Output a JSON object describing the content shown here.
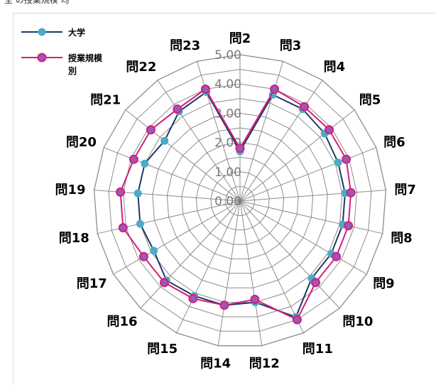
{
  "top_text": "全 の授業規模 均",
  "chart_data": {
    "type": "radar",
    "title": "",
    "categories": [
      "問2",
      "問3",
      "問4",
      "問5",
      "問6",
      "問7",
      "問8",
      "問9",
      "問10",
      "問11",
      "問12",
      "問14",
      "問15",
      "問16",
      "問17",
      "問18",
      "問19",
      "問20",
      "問21",
      "問22",
      "問23"
    ],
    "rlim": [
      0,
      5
    ],
    "tick_labels": [
      "0.00",
      "1.00",
      "2.00",
      "3.00",
      "4.00",
      "5.00"
    ],
    "legend": {
      "position": "top-left"
    },
    "series": [
      {
        "name": "大学",
        "color": "#4bacc6",
        "values": [
          1.7,
          3.8,
          3.8,
          3.7,
          3.6,
          3.6,
          3.6,
          3.6,
          3.6,
          4.4,
          3.5,
          3.6,
          3.6,
          3.7,
          3.4,
          3.5,
          3.5,
          3.5,
          3.3,
          3.7,
          3.9
        ]
      },
      {
        "name": "授業規模別",
        "color": "#d11f7c",
        "values": [
          1.8,
          4.0,
          3.9,
          3.9,
          3.9,
          3.8,
          3.8,
          3.8,
          3.8,
          4.5,
          3.4,
          3.6,
          3.7,
          3.8,
          3.8,
          4.1,
          4.1,
          3.9,
          3.9,
          3.8,
          4.0
        ]
      }
    ]
  }
}
